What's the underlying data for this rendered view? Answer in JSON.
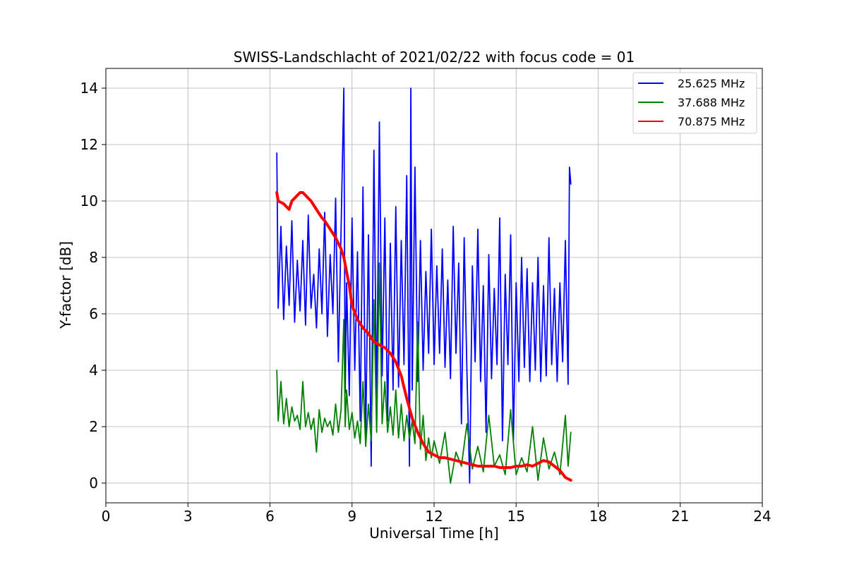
{
  "chart_data": {
    "type": "line",
    "title": "SWISS-Landschlacht of 2021/02/22 with focus code = 01",
    "xlabel": "Universal Time [h]",
    "ylabel": "Y-factor [dB]",
    "xlim": [
      0,
      24
    ],
    "ylim": [
      -0.7,
      14.7
    ],
    "x_ticks": [
      0,
      3,
      6,
      9,
      12,
      15,
      18,
      21,
      24
    ],
    "y_ticks": [
      0,
      2,
      4,
      6,
      8,
      10,
      12,
      14
    ],
    "grid": true,
    "legend_position": "top-right",
    "series": [
      {
        "name": "25.625 MHz",
        "color": "#0000ff",
        "x": [
          6.25,
          6.3,
          6.4,
          6.5,
          6.6,
          6.7,
          6.8,
          6.9,
          7.0,
          7.1,
          7.2,
          7.3,
          7.4,
          7.5,
          7.6,
          7.7,
          7.8,
          7.9,
          8.0,
          8.1,
          8.2,
          8.3,
          8.4,
          8.5,
          8.6,
          8.7,
          8.75,
          8.8,
          8.9,
          9.0,
          9.1,
          9.2,
          9.3,
          9.4,
          9.5,
          9.6,
          9.7,
          9.8,
          9.9,
          10.0,
          10.1,
          10.2,
          10.3,
          10.4,
          10.5,
          10.6,
          10.7,
          10.8,
          10.9,
          11.0,
          11.1,
          11.15,
          11.2,
          11.3,
          11.4,
          11.5,
          11.6,
          11.7,
          11.8,
          11.9,
          12.0,
          12.1,
          12.2,
          12.3,
          12.4,
          12.5,
          12.6,
          12.7,
          12.8,
          12.9,
          13.0,
          13.1,
          13.2,
          13.3,
          13.4,
          13.5,
          13.6,
          13.7,
          13.8,
          13.9,
          14.0,
          14.1,
          14.2,
          14.3,
          14.4,
          14.5,
          14.6,
          14.7,
          14.8,
          14.9,
          15.0,
          15.1,
          15.2,
          15.3,
          15.4,
          15.5,
          15.6,
          15.7,
          15.8,
          15.9,
          16.0,
          16.1,
          16.2,
          16.3,
          16.4,
          16.5,
          16.6,
          16.7,
          16.8,
          16.9,
          16.95,
          17.0
        ],
        "values": [
          11.7,
          6.2,
          9.1,
          5.8,
          8.4,
          6.3,
          9.3,
          5.7,
          7.9,
          6.1,
          8.6,
          5.6,
          9.5,
          6.2,
          7.4,
          5.5,
          8.3,
          6.0,
          9.6,
          5.2,
          8.1,
          6.0,
          10.1,
          4.3,
          9.0,
          14.0,
          3.2,
          7.1,
          3.1,
          9.4,
          4.0,
          8.2,
          2.2,
          10.5,
          1.7,
          8.8,
          0.6,
          11.8,
          2.6,
          12.8,
          3.8,
          9.4,
          2.2,
          8.5,
          3.3,
          9.8,
          3.4,
          8.6,
          4.2,
          10.9,
          0.6,
          14.0,
          3.3,
          11.2,
          3.6,
          8.6,
          4.0,
          7.5,
          4.6,
          9.0,
          4.2,
          7.7,
          4.6,
          8.3,
          4.1,
          7.2,
          3.7,
          9.1,
          4.6,
          7.8,
          2.1,
          8.7,
          4.0,
          0.0,
          7.7,
          4.3,
          9.0,
          3.6,
          7.0,
          1.8,
          8.1,
          3.7,
          6.9,
          4.2,
          9.4,
          1.5,
          7.4,
          4.2,
          8.8,
          1.5,
          7.1,
          3.6,
          8.0,
          4.1,
          7.6,
          3.6,
          7.1,
          4.0,
          8.0,
          3.6,
          7.0,
          3.8,
          8.7,
          4.2,
          6.9,
          3.6,
          7.1,
          4.3,
          8.6,
          3.5,
          11.2,
          10.6
        ]
      },
      {
        "name": "37.688 MHz",
        "color": "#008000",
        "x": [
          6.25,
          6.3,
          6.4,
          6.5,
          6.6,
          6.7,
          6.8,
          6.9,
          7.0,
          7.1,
          7.2,
          7.3,
          7.4,
          7.5,
          7.6,
          7.7,
          7.8,
          7.9,
          8.0,
          8.1,
          8.2,
          8.3,
          8.4,
          8.5,
          8.6,
          8.7,
          8.75,
          8.8,
          8.9,
          9.0,
          9.1,
          9.2,
          9.3,
          9.4,
          9.5,
          9.6,
          9.7,
          9.8,
          9.9,
          10.0,
          10.1,
          10.2,
          10.3,
          10.4,
          10.5,
          10.6,
          10.7,
          10.8,
          10.9,
          11.0,
          11.1,
          11.2,
          11.3,
          11.4,
          11.5,
          11.6,
          11.7,
          11.8,
          11.9,
          12.0,
          12.2,
          12.4,
          12.6,
          12.8,
          13.0,
          13.2,
          13.4,
          13.6,
          13.8,
          14.0,
          14.2,
          14.4,
          14.6,
          14.8,
          15.0,
          15.2,
          15.4,
          15.6,
          15.8,
          16.0,
          16.2,
          16.4,
          16.6,
          16.8,
          16.9,
          17.0
        ],
        "values": [
          4.0,
          2.2,
          3.6,
          2.1,
          3.0,
          2.0,
          2.7,
          2.2,
          2.4,
          1.9,
          3.6,
          2.0,
          2.5,
          1.9,
          2.3,
          1.1,
          2.6,
          1.8,
          2.3,
          2.0,
          2.2,
          1.7,
          2.8,
          1.8,
          2.6,
          5.8,
          2.0,
          3.3,
          1.9,
          2.5,
          1.6,
          2.2,
          1.4,
          3.6,
          1.3,
          2.8,
          1.5,
          6.5,
          1.8,
          7.8,
          2.1,
          3.6,
          1.8,
          2.7,
          1.7,
          3.3,
          1.6,
          2.8,
          1.5,
          2.4,
          1.6,
          2.2,
          1.4,
          5.7,
          1.2,
          2.4,
          0.8,
          1.6,
          0.9,
          1.5,
          0.7,
          1.8,
          0.0,
          1.1,
          0.6,
          2.1,
          0.5,
          1.3,
          0.4,
          2.4,
          0.6,
          1.0,
          0.3,
          2.6,
          0.3,
          0.9,
          0.4,
          2.0,
          0.1,
          1.6,
          0.5,
          1.1,
          0.3,
          2.4,
          0.6,
          1.8
        ]
      },
      {
        "name": "70.875 MHz",
        "color": "#ff0000",
        "x": [
          6.25,
          6.3,
          6.5,
          6.7,
          6.8,
          6.9,
          7.0,
          7.1,
          7.2,
          7.3,
          7.5,
          7.7,
          7.9,
          8.0,
          8.2,
          8.4,
          8.6,
          8.7,
          8.8,
          8.9,
          9.0,
          9.2,
          9.4,
          9.6,
          9.8,
          10.0,
          10.2,
          10.4,
          10.6,
          10.8,
          11.0,
          11.2,
          11.4,
          11.6,
          11.8,
          12.0,
          12.2,
          12.4,
          12.6,
          12.8,
          13.0,
          13.2,
          13.4,
          13.6,
          13.8,
          14.0,
          14.2,
          14.4,
          14.6,
          14.8,
          15.0,
          15.2,
          15.4,
          15.6,
          15.8,
          16.0,
          16.2,
          16.4,
          16.6,
          16.8,
          17.0
        ],
        "values": [
          10.3,
          10.0,
          9.9,
          9.7,
          10.0,
          10.1,
          10.2,
          10.3,
          10.3,
          10.2,
          10.0,
          9.7,
          9.4,
          9.3,
          9.0,
          8.7,
          8.3,
          8.0,
          7.5,
          7.0,
          6.3,
          5.8,
          5.5,
          5.3,
          5.0,
          4.9,
          4.8,
          4.6,
          4.3,
          3.8,
          3.0,
          2.3,
          1.8,
          1.4,
          1.1,
          1.0,
          0.9,
          0.9,
          0.85,
          0.8,
          0.75,
          0.7,
          0.65,
          0.6,
          0.6,
          0.6,
          0.6,
          0.55,
          0.55,
          0.55,
          0.6,
          0.6,
          0.65,
          0.6,
          0.7,
          0.8,
          0.75,
          0.6,
          0.45,
          0.2,
          0.1
        ]
      }
    ]
  }
}
